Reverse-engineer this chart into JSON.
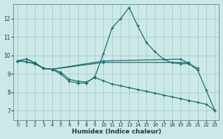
{
  "xlabel": "Humidex (Indice chaleur)",
  "background_color": "#cce9e8",
  "grid_color": "#aacfce",
  "line_color": "#1a6b6b",
  "xlim": [
    -0.5,
    23.5
  ],
  "ylim": [
    6.5,
    12.8
  ],
  "yticks": [
    7,
    8,
    9,
    10,
    11,
    12
  ],
  "xticks": [
    0,
    1,
    2,
    3,
    4,
    5,
    6,
    7,
    8,
    9,
    10,
    11,
    12,
    13,
    14,
    15,
    16,
    17,
    18,
    19,
    20,
    21,
    22,
    23
  ],
  "series": [
    {
      "x": [
        0,
        1,
        2,
        3,
        4,
        5,
        6,
        7,
        8,
        9,
        10,
        11,
        12,
        13,
        14,
        15,
        16,
        17,
        18,
        19,
        20,
        21,
        22,
        23
      ],
      "y": [
        9.7,
        9.8,
        9.6,
        9.3,
        9.25,
        9.0,
        8.6,
        8.5,
        8.5,
        8.85,
        10.1,
        11.5,
        12.0,
        12.6,
        11.6,
        10.7,
        10.2,
        9.8,
        9.6,
        9.55,
        9.55,
        9.2,
        8.1,
        7.0
      ]
    },
    {
      "x": [
        0,
        1,
        2,
        3,
        4,
        10,
        19,
        21
      ],
      "y": [
        9.7,
        9.8,
        9.6,
        9.3,
        9.25,
        9.7,
        9.8,
        9.3
      ]
    },
    {
      "x": [
        0,
        1,
        2,
        3,
        4,
        10,
        20
      ],
      "y": [
        9.7,
        9.65,
        9.55,
        9.3,
        9.25,
        9.62,
        9.62
      ]
    },
    {
      "x": [
        0,
        1,
        2,
        3,
        4,
        5,
        6,
        7,
        8,
        9,
        10,
        11,
        12,
        13,
        14,
        15,
        16,
        17,
        18,
        19,
        20,
        21,
        22,
        23
      ],
      "y": [
        9.7,
        9.65,
        9.55,
        9.3,
        9.25,
        9.1,
        8.7,
        8.6,
        8.55,
        8.8,
        8.62,
        8.45,
        8.35,
        8.25,
        8.15,
        8.05,
        7.95,
        7.85,
        7.75,
        7.65,
        7.55,
        7.45,
        7.35,
        7.0
      ]
    }
  ]
}
